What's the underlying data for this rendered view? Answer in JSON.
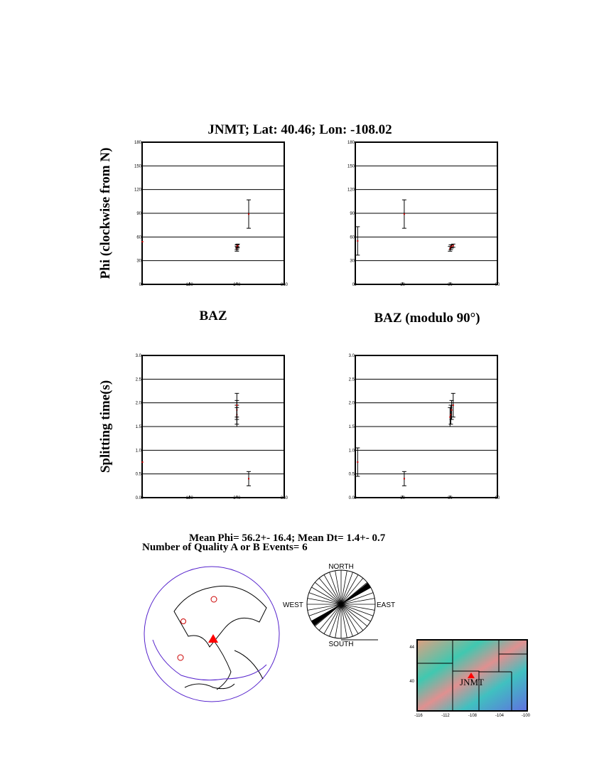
{
  "title": "JNMT; Lat:  40.46;  Lon: -108.02",
  "colors": {
    "point": "#cc0000",
    "grid": "#000000",
    "plate": "#5522cc",
    "station": "#ff0000"
  },
  "chart_data": [
    {
      "type": "scatter",
      "ylabel": "Phi (clockwise from N)",
      "xlabel": "",
      "xlim": [
        0,
        360
      ],
      "ylim": [
        0,
        180
      ],
      "xticks": [
        "0",
        "120",
        "240",
        "360"
      ],
      "xtick_values": [
        0,
        120,
        240,
        360
      ],
      "yticks": [
        "0",
        "30",
        "60",
        "90",
        "120",
        "150",
        "180"
      ],
      "ytick_values": [
        0,
        30,
        60,
        90,
        120,
        150,
        180
      ],
      "grid": "horizontal",
      "points": [
        {
          "x": 0,
          "y": 54,
          "err": 0
        },
        {
          "x": 240,
          "y": 45,
          "err": 3
        },
        {
          "x": 240,
          "y": 47,
          "err": 3
        },
        {
          "x": 241,
          "y": 48,
          "err": 2
        },
        {
          "x": 242,
          "y": 49,
          "err": 2
        },
        {
          "x": 270,
          "y": 89,
          "err": 18
        }
      ]
    },
    {
      "type": "scatter",
      "ylabel": "",
      "xlabel": "BAZ (modulo 90°)",
      "xlim": [
        0,
        90
      ],
      "ylim": [
        0,
        180
      ],
      "xticks": [
        "0",
        "30",
        "60",
        "90"
      ],
      "xtick_values": [
        0,
        30,
        60,
        90
      ],
      "yticks": [
        "0",
        "30",
        "60",
        "90",
        "120",
        "150",
        "180"
      ],
      "ytick_values": [
        0,
        30,
        60,
        90,
        120,
        150,
        180
      ],
      "grid": "horizontal",
      "points": [
        {
          "x": 1.5,
          "y": 55,
          "err": 18
        },
        {
          "x": 31,
          "y": 89,
          "err": 18
        },
        {
          "x": 60,
          "y": 45,
          "err": 3
        },
        {
          "x": 60.5,
          "y": 47,
          "err": 3
        },
        {
          "x": 61,
          "y": 48,
          "err": 2
        },
        {
          "x": 62,
          "y": 49,
          "err": 2
        }
      ]
    },
    {
      "type": "scatter",
      "ylabel": "Splitting time(s)",
      "xlabel": "",
      "xlim": [
        0,
        360
      ],
      "ylim": [
        0,
        3.0
      ],
      "xticks": [
        "0",
        "120",
        "240",
        "360"
      ],
      "xtick_values": [
        0,
        120,
        240,
        360
      ],
      "yticks": [
        "0.0",
        "0.5",
        "1.0",
        "1.5",
        "2.0",
        "2.5",
        "3.0"
      ],
      "ytick_values": [
        0,
        0.5,
        1,
        1.5,
        2,
        2.5,
        3
      ],
      "grid": "horizontal",
      "points": [
        {
          "x": 0,
          "y": 0.75,
          "err": 0
        },
        {
          "x": 240,
          "y": 1.7,
          "err": 0.2
        },
        {
          "x": 240,
          "y": 1.75,
          "err": 0.2
        },
        {
          "x": 240,
          "y": 1.85,
          "err": 0.2
        },
        {
          "x": 240,
          "y": 1.95,
          "err": 0.25
        },
        {
          "x": 270,
          "y": 0.4,
          "err": 0.15
        }
      ]
    },
    {
      "type": "scatter",
      "ylabel": "",
      "xlabel": "",
      "xlim": [
        0,
        90
      ],
      "ylim": [
        0,
        3.0
      ],
      "xticks": [
        "0",
        "30",
        "60",
        "90"
      ],
      "xtick_values": [
        0,
        30,
        60,
        90
      ],
      "yticks": [
        "0.0",
        "0.5",
        "1.0",
        "1.5",
        "2.0",
        "2.5",
        "3.0"
      ],
      "ytick_values": [
        0,
        0.5,
        1,
        1.5,
        2,
        2.5,
        3
      ],
      "grid": "horizontal",
      "points": [
        {
          "x": 1.5,
          "y": 0.75,
          "err": 0.3
        },
        {
          "x": 31,
          "y": 0.4,
          "err": 0.15
        },
        {
          "x": 60,
          "y": 1.7,
          "err": 0.2
        },
        {
          "x": 60.5,
          "y": 1.75,
          "err": 0.2
        },
        {
          "x": 61,
          "y": 1.85,
          "err": 0.2
        },
        {
          "x": 62,
          "y": 1.95,
          "err": 0.25
        }
      ]
    }
  ],
  "baz_label": "BAZ",
  "stats": {
    "line1": "Mean Phi= 56.2+- 16.4; Mean Dt=  1.4+-  0.7",
    "line2": "Number of Quality A  or B  Events=  6"
  },
  "rose": {
    "north": "NORTH",
    "south": "SOUTH",
    "east": "EAST",
    "west": "WEST",
    "filled_azimuth": 56
  },
  "local_map": {
    "station": "JNMT",
    "lat_ticks": [
      "44",
      "40"
    ],
    "lon_ticks": [
      "-116",
      "-112",
      "-108",
      "-104",
      "-100"
    ]
  }
}
